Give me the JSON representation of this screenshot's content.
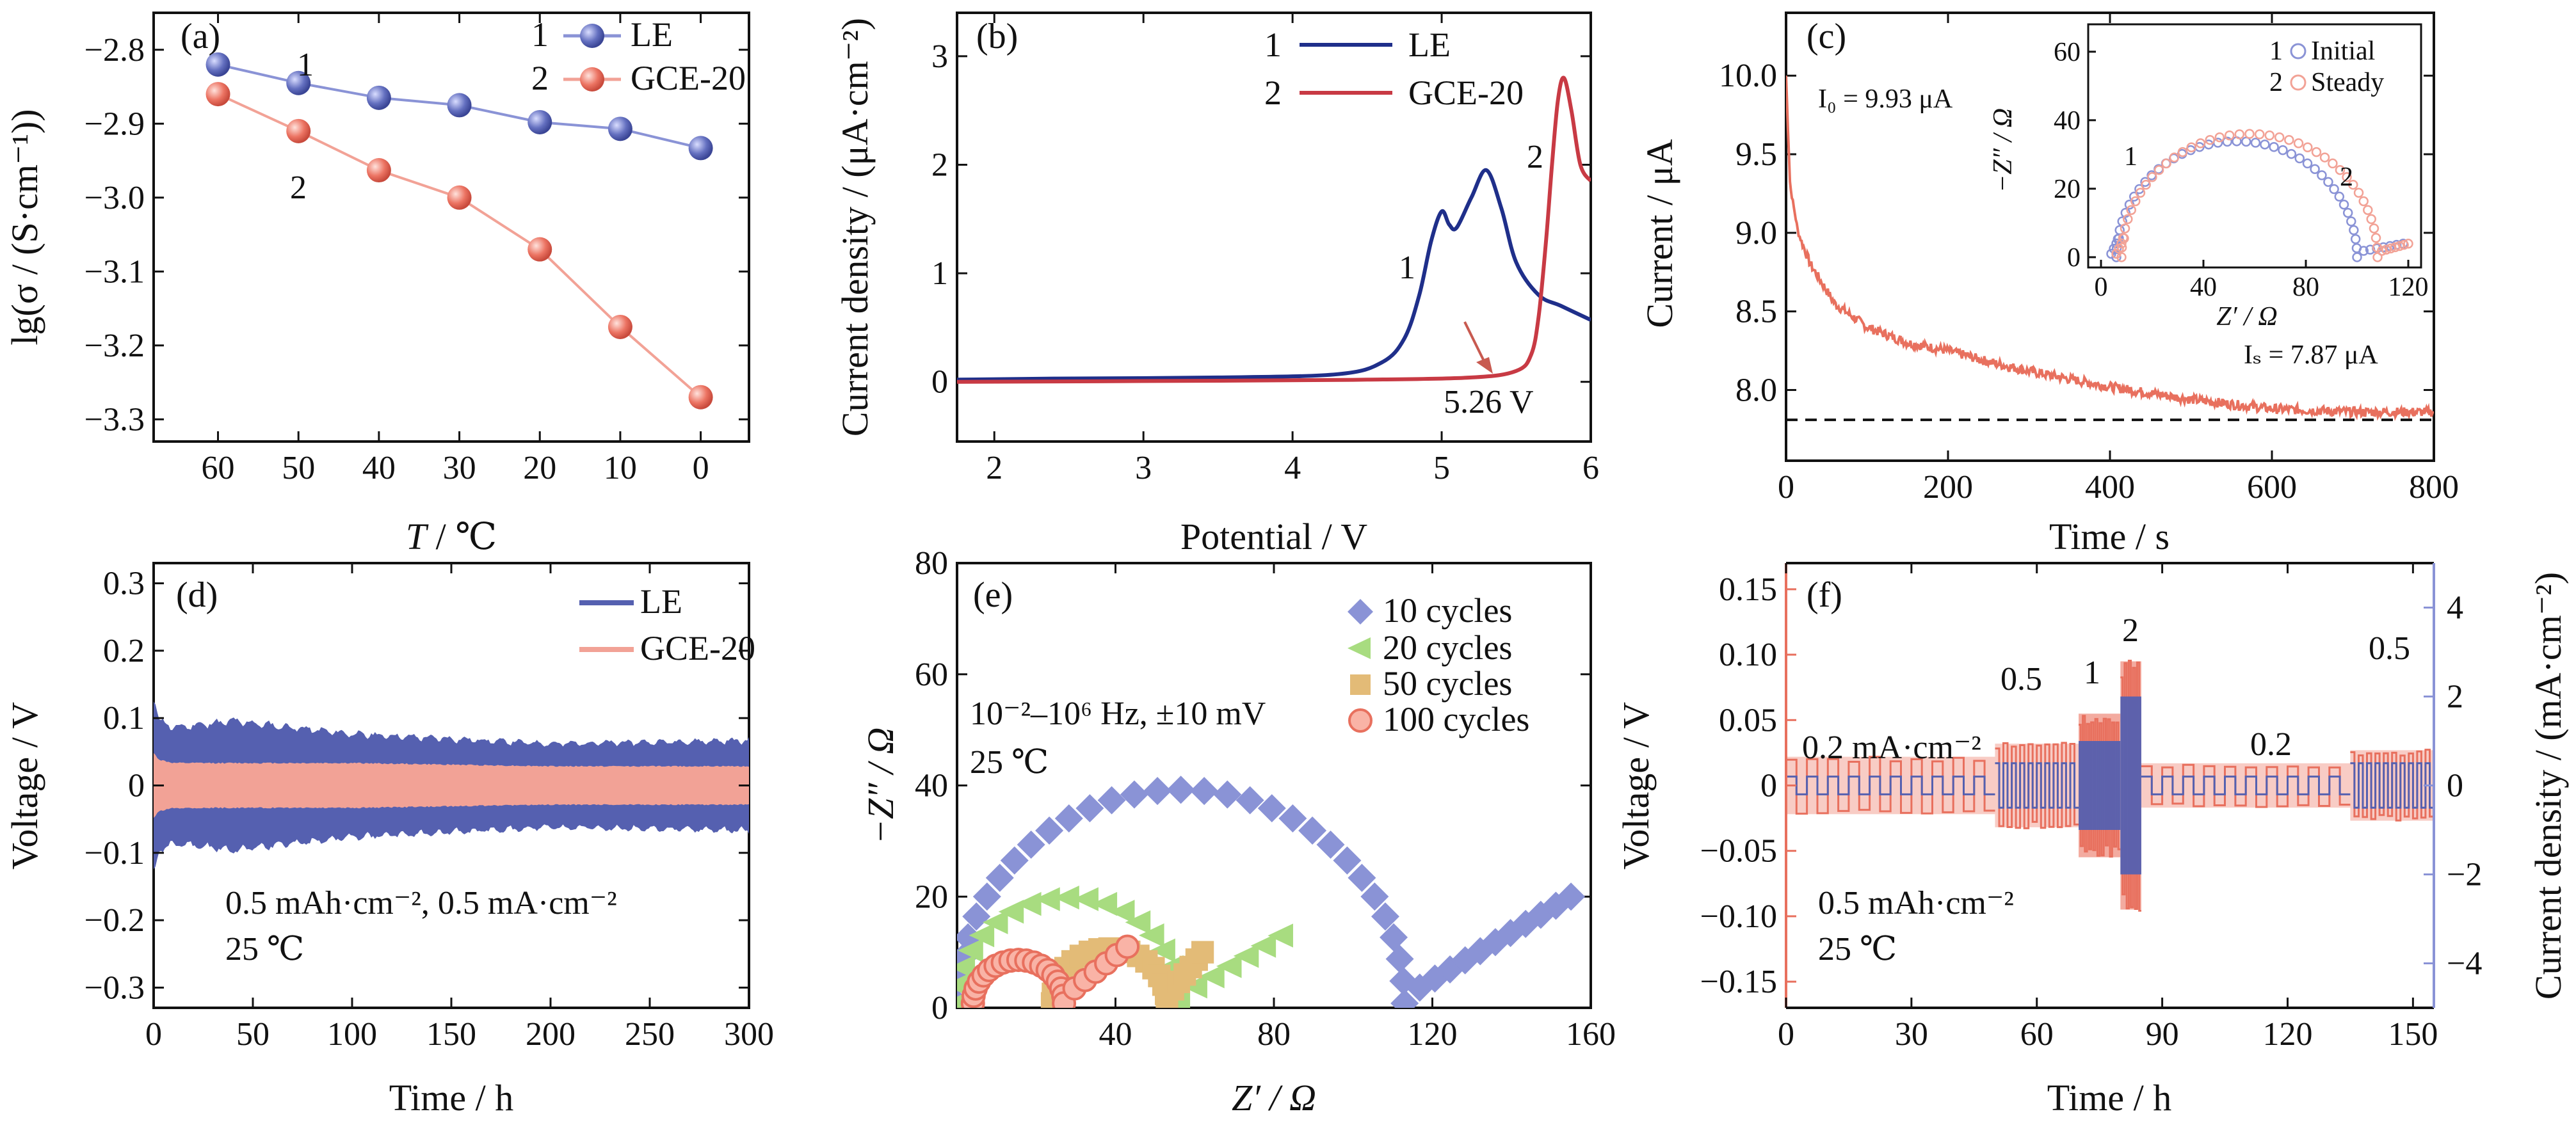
{
  "panels": {
    "a": {
      "label": "(a)",
      "xlabel_italic": "T",
      "xlabel_rest": " / ℃",
      "ylabel": "lg(σ / (S·cm⁻¹))",
      "xticks": [
        "60",
        "50",
        "40",
        "30",
        "20",
        "10",
        "0"
      ],
      "yticks": [
        "−2.8",
        "−2.9",
        "−3.0",
        "−3.1",
        "−3.2",
        "−3.3"
      ],
      "legend": [
        {
          "num": "1",
          "name": "LE"
        },
        {
          "num": "2",
          "name": "GCE-20"
        }
      ],
      "curve_tags": [
        "1",
        "2"
      ]
    },
    "b": {
      "label": "(b)",
      "xlabel": "Potential / V",
      "ylabel": "Current density / (μA·cm⁻²)",
      "xticks": [
        "2",
        "3",
        "4",
        "5",
        "6"
      ],
      "yticks": [
        "0",
        "1",
        "2",
        "3"
      ],
      "legend": [
        {
          "num": "1",
          "name": "LE"
        },
        {
          "num": "2",
          "name": "GCE-20"
        }
      ],
      "curve_tags": [
        "1",
        "2"
      ],
      "annotation": "5.26 V"
    },
    "c": {
      "label": "(c)",
      "xlabel": "Time / s",
      "ylabel": "Current / μA",
      "xticks": [
        "0",
        "200",
        "400",
        "600",
        "800"
      ],
      "yticks": [
        "8.0",
        "8.5",
        "9.0",
        "9.5",
        "10.0"
      ],
      "i0": "I₀ = 9.93 μA",
      "is": "Iₛ = 7.87 μA",
      "inset": {
        "xlabel": "Z′ / Ω",
        "ylabel": "−Z″ / Ω",
        "xticks": [
          "0",
          "40",
          "80",
          "120"
        ],
        "yticks": [
          "0",
          "20",
          "40",
          "60"
        ],
        "legend": [
          {
            "num": "1",
            "name": "Initial"
          },
          {
            "num": "2",
            "name": "Steady"
          }
        ],
        "curve_tags": [
          "1",
          "2"
        ]
      }
    },
    "d": {
      "label": "(d)",
      "xlabel": "Time / h",
      "ylabel": "Voltage / V",
      "xticks": [
        "0",
        "50",
        "100",
        "150",
        "200",
        "250",
        "300"
      ],
      "yticks": [
        "0.3",
        "0.2",
        "0.1",
        "0",
        "−0.1",
        "−0.2",
        "−0.3"
      ],
      "legend": [
        {
          "name": "LE"
        },
        {
          "name": "GCE-20"
        }
      ],
      "ann1": "0.5 mAh·cm⁻², 0.5 mA·cm⁻²",
      "ann2": "25 ℃"
    },
    "e": {
      "label": "(e)",
      "xlabel": "Z′ / Ω",
      "ylabel": "−Z″ / Ω",
      "xticks": [
        "40",
        "80",
        "120",
        "160"
      ],
      "yticks": [
        "0",
        "20",
        "40",
        "60",
        "80"
      ],
      "legend": [
        {
          "name": "10 cycles"
        },
        {
          "name": "20 cycles"
        },
        {
          "name": "50 cycles"
        },
        {
          "name": "100 cycles"
        }
      ],
      "ann1": "10⁻²–10⁶ Hz, ±10 mV",
      "ann2": "25 ℃"
    },
    "f": {
      "label": "(f)",
      "xlabel": "Time / h",
      "ylabel": "Voltage / V",
      "y2label": "Current density / (mA·cm⁻²)",
      "xticks": [
        "0",
        "30",
        "60",
        "90",
        "120",
        "150"
      ],
      "yticks": [
        "0.15",
        "0.10",
        "0.05",
        "0",
        "−0.05",
        "−0.10",
        "−0.15"
      ],
      "y2ticks": [
        "4",
        "2",
        "0",
        "−2",
        "−4"
      ],
      "rate_labels": [
        "0.2 mA·cm⁻²",
        "0.5",
        "1",
        "2",
        "0.2",
        "0.5"
      ],
      "ann1": "0.5 mAh·cm⁻²",
      "ann2": "25 ℃"
    }
  },
  "colors": {
    "blue": "#5560b0",
    "blue_light": "#8a93d6",
    "red": "#e8705e",
    "red_light": "#f2a296",
    "navy": "#1f2f8a",
    "crimson": "#c83a44",
    "green": "#a8dc80",
    "gold": "#e3bb77"
  },
  "chart_data": [
    {
      "panel": "a",
      "type": "line",
      "x": [
        60,
        50,
        40,
        30,
        20,
        10,
        0
      ],
      "xlim": [
        68,
        -6
      ],
      "ylim": [
        -3.33,
        -2.75
      ],
      "series": [
        {
          "name": "LE",
          "values": [
            -2.82,
            -2.845,
            -2.865,
            -2.875,
            -2.898,
            -2.907,
            -2.933
          ]
        },
        {
          "name": "GCE-20",
          "values": [
            -2.86,
            -2.91,
            -2.963,
            -3.0,
            -3.07,
            -3.175,
            -3.27
          ]
        }
      ]
    },
    {
      "panel": "b",
      "type": "line",
      "xlim": [
        1.75,
        6.0
      ],
      "ylim": [
        -0.55,
        3.4
      ],
      "series": [
        {
          "name": "LE",
          "x": [
            1.75,
            2.4,
            3.5,
            4.3,
            4.6,
            4.75,
            4.85,
            4.93,
            5.0,
            5.05,
            5.1,
            5.2,
            5.3,
            5.4,
            5.5,
            5.65,
            5.8,
            6.0
          ],
          "y": [
            0.02,
            0.03,
            0.04,
            0.07,
            0.18,
            0.4,
            0.8,
            1.3,
            1.57,
            1.45,
            1.42,
            1.7,
            1.95,
            1.6,
            1.1,
            0.8,
            0.7,
            0.57
          ]
        },
        {
          "name": "GCE-20",
          "x": [
            1.75,
            3.5,
            4.5,
            5.2,
            5.5,
            5.6,
            5.65,
            5.7,
            5.74,
            5.78,
            5.82,
            5.87,
            5.93,
            6.0
          ],
          "y": [
            0.0,
            0.01,
            0.02,
            0.04,
            0.1,
            0.25,
            0.6,
            1.3,
            2.0,
            2.6,
            2.8,
            2.5,
            2.0,
            1.85
          ]
        }
      ]
    },
    {
      "panel": "c",
      "type": "line",
      "xlim": [
        0,
        800
      ],
      "ylim": [
        7.55,
        10.4
      ],
      "series": [
        {
          "name": "current",
          "x": [
            0,
            5,
            15,
            30,
            60,
            100,
            150,
            200,
            250,
            300,
            400,
            500,
            600,
            700,
            800
          ],
          "y": [
            10.0,
            9.3,
            9.0,
            8.8,
            8.55,
            8.4,
            8.3,
            8.25,
            8.18,
            8.12,
            8.02,
            7.94,
            7.88,
            7.86,
            7.86
          ]
        }
      ],
      "dashed_level": 7.81
    },
    {
      "panel": "c-inset",
      "type": "scatter",
      "xlim": [
        -5,
        125
      ],
      "ylim": [
        -3,
        68
      ],
      "series": [
        {
          "name": "Initial",
          "center": 53,
          "radius": 47,
          "tail_end": 118
        },
        {
          "name": "Steady",
          "center": 58,
          "radius": 50,
          "tail_end": 120
        }
      ]
    },
    {
      "panel": "d",
      "type": "area",
      "xlim": [
        0,
        300
      ],
      "ylim": [
        -0.33,
        0.33
      ],
      "series": [
        {
          "name": "LE",
          "x": [
            0,
            3,
            10,
            40,
            100,
            200,
            300
          ],
          "amplitude": [
            0.14,
            0.1,
            0.09,
            0.1,
            0.08,
            0.065,
            0.07
          ]
        },
        {
          "name": "GCE-20",
          "x": [
            0,
            3,
            10,
            100,
            200,
            300
          ],
          "amplitude": [
            0.05,
            0.04,
            0.035,
            0.035,
            0.03,
            0.03
          ]
        }
      ]
    },
    {
      "panel": "e",
      "type": "scatter",
      "xlim": [
        0,
        160
      ],
      "ylim": [
        0,
        80
      ],
      "series": [
        {
          "name": "10 cycles",
          "arc_start": 0,
          "arc_end": 113,
          "tail_end": 155,
          "tail_top": 20
        },
        {
          "name": "20 cycles",
          "arc_start": 0,
          "arc_end": 56,
          "tail_end": 82,
          "tail_top": 13
        },
        {
          "name": "50 cycles",
          "arc_start": 24,
          "arc_end": 53,
          "tail_end": 62,
          "tail_top": 10
        },
        {
          "name": "100 cycles",
          "arc_start": 4,
          "arc_end": 27,
          "tail_end": 43,
          "tail_top": 11
        }
      ]
    },
    {
      "panel": "f",
      "type": "line",
      "xlim": [
        0,
        155
      ],
      "ylim": [
        -0.17,
        0.17
      ],
      "y2lim": [
        -5,
        5
      ],
      "segments": [
        {
          "t0": 0,
          "t1": 50,
          "current": 0.2,
          "voltage": 0.02
        },
        {
          "t0": 50,
          "t1": 70,
          "current": 0.5,
          "voltage": 0.03
        },
        {
          "t0": 70,
          "t1": 80,
          "current": 1,
          "voltage": 0.05
        },
        {
          "t0": 80,
          "t1": 85,
          "current": 2,
          "voltage": 0.09
        },
        {
          "t0": 85,
          "t1": 135,
          "current": 0.2,
          "voltage": 0.015
        },
        {
          "t0": 135,
          "t1": 155,
          "current": 0.5,
          "voltage": 0.025
        }
      ]
    }
  ]
}
